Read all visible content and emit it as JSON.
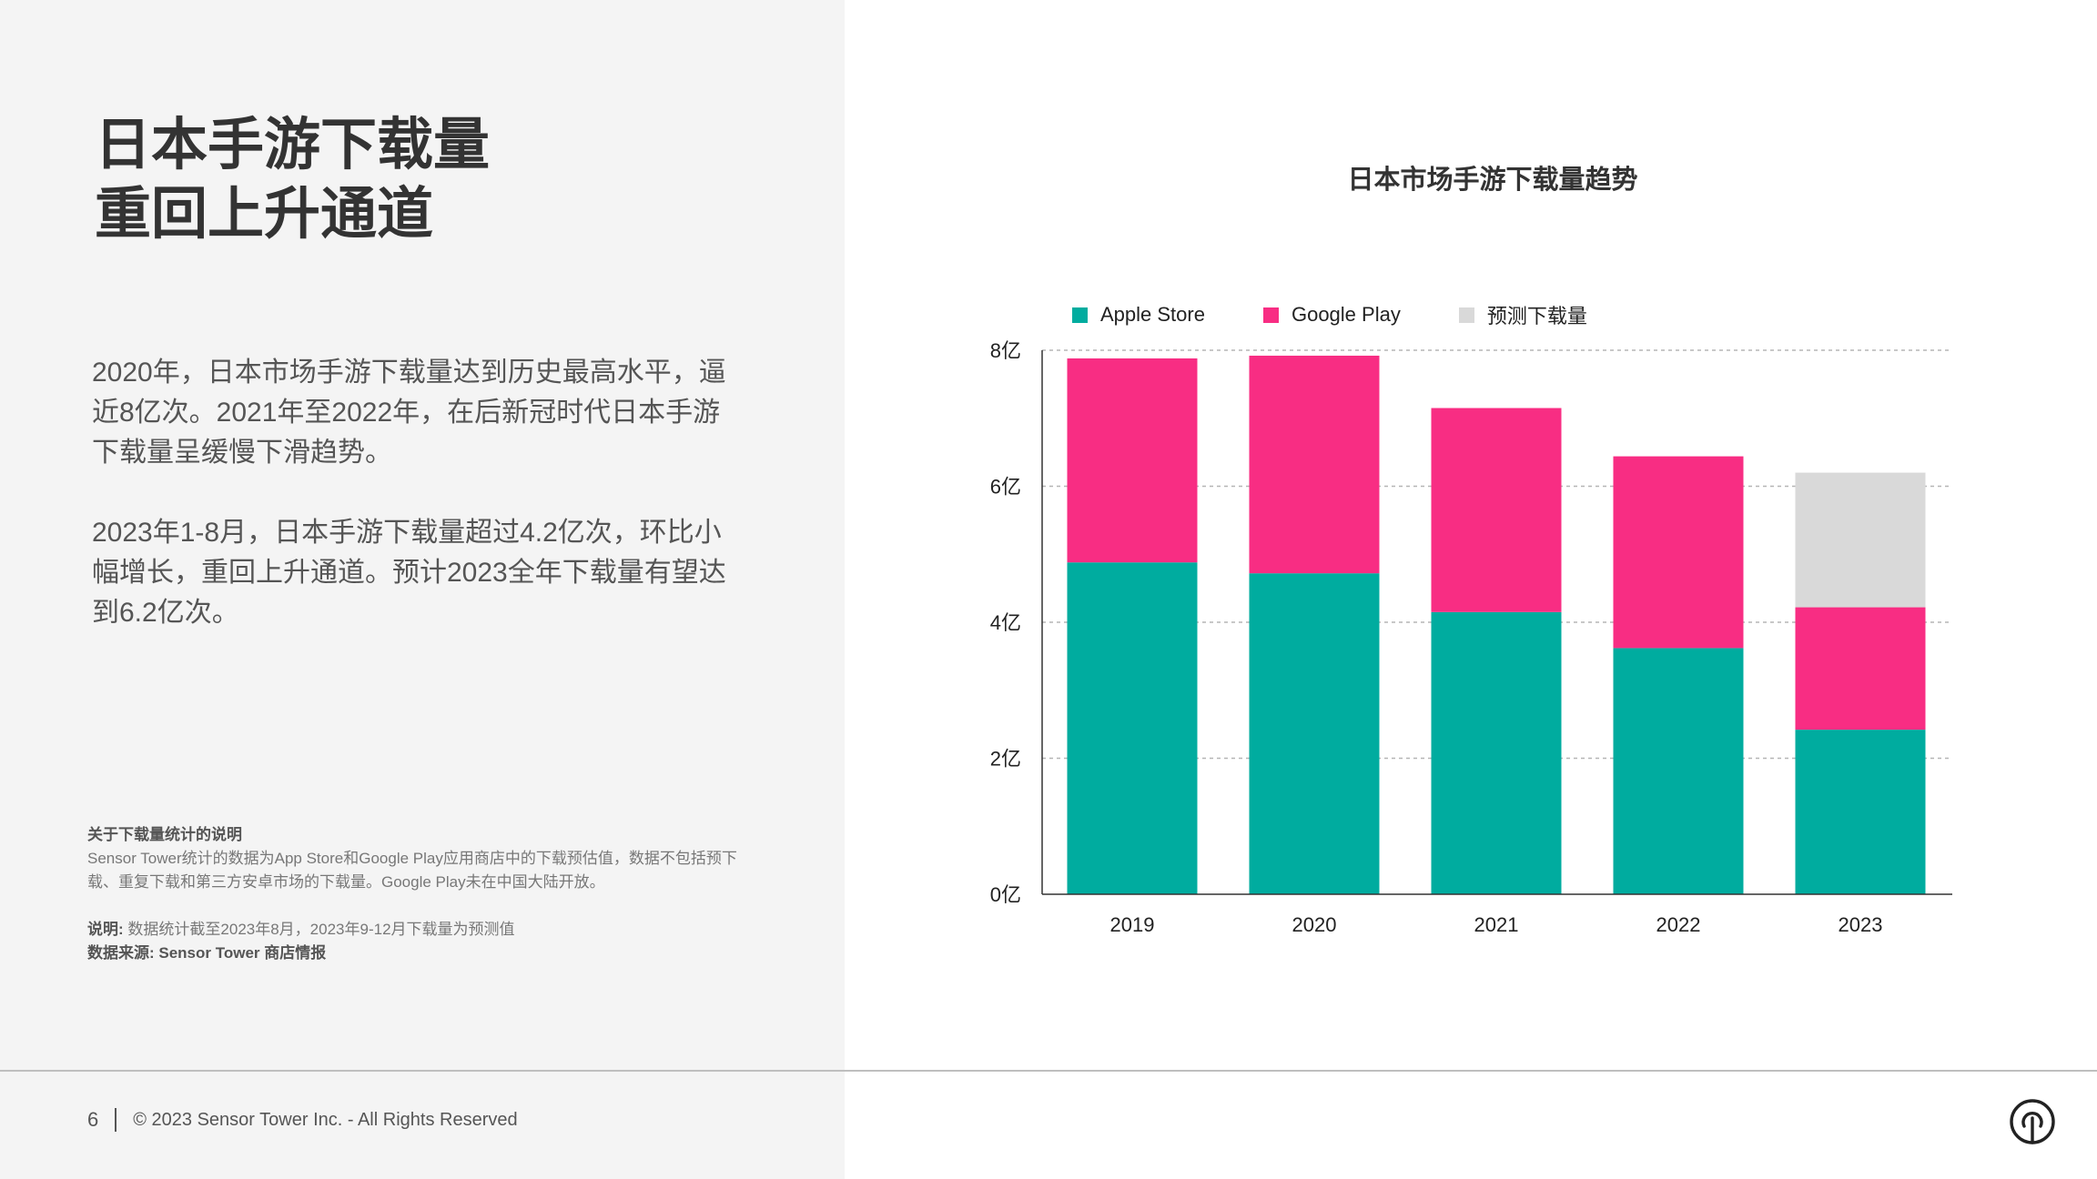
{
  "title_lines": [
    "日本手游下载量",
    "重回上升通道"
  ],
  "paragraphs": [
    "2020年，日本市场手游下载量达到历史最高水平，逼近8亿次。2021年至2022年，在后新冠时代日本手游下载量呈缓慢下滑趋势。",
    "2023年1-8月，日本手游下载量超过4.2亿次，环比小幅增长，重回上升通道。预计2023全年下载量有望达到6.2亿次。"
  ],
  "notes": {
    "heading": "关于下载量统计的说明",
    "body": "Sensor  Tower统计的数据为App  Store和Google  Play应用商店中的下载预估值，数据不包括预下载、重复下载和第三方安卓市场的下载量。Google Play未在中国大陆开放。",
    "explain_label": "说明:",
    "explain_text": "数据统计截至2023年8月，2023年9-12月下载量为预测值",
    "source": "数据来源: Sensor Tower 商店情报"
  },
  "footer": {
    "page_number": "6",
    "copyright": "© 2023 Sensor Tower Inc. - All Rights Reserved"
  },
  "logo_icon": "sensor-tower-logo-icon",
  "colors": {
    "apple": "#00ac9f",
    "google": "#f82d83",
    "forecast": "#d9d9d9"
  },
  "chart_data": {
    "type": "bar",
    "stacked": true,
    "title": "日本市场手游下载量趋势",
    "categories": [
      "2019",
      "2020",
      "2021",
      "2022",
      "2023"
    ],
    "series": [
      {
        "name": "Apple Store",
        "color": "#00ac9f",
        "values": [
          4.88,
          4.72,
          4.15,
          3.62,
          2.42
        ]
      },
      {
        "name": "Google Play",
        "color": "#f82d83",
        "values": [
          3.0,
          3.2,
          3.0,
          2.82,
          1.8
        ]
      },
      {
        "name": "预测下载量",
        "color": "#d9d9d9",
        "values": [
          0,
          0,
          0,
          0,
          1.98
        ]
      }
    ],
    "yticks": [
      "0亿",
      "2亿",
      "4亿",
      "6亿",
      "8亿"
    ],
    "ytick_values": [
      0,
      2,
      4,
      6,
      8
    ],
    "ylim": [
      0,
      8
    ],
    "grid": true,
    "legend_position": "top"
  }
}
